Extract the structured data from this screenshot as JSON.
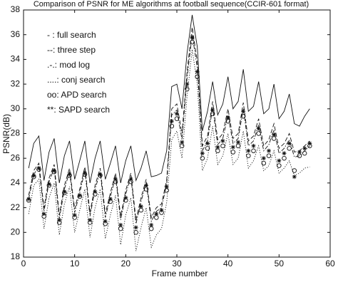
{
  "chart_data": {
    "type": "line",
    "title": "Comparison of PSNR for ME algorithms at football sequence(CCIR-601 format)",
    "x_label": "Frame number",
    "y_label": "PSNR(dB)",
    "x": [
      1,
      2,
      3,
      4,
      5,
      6,
      7,
      8,
      9,
      10,
      11,
      12,
      13,
      14,
      15,
      16,
      17,
      18,
      19,
      20,
      21,
      22,
      23,
      24,
      25,
      26,
      27,
      28,
      29,
      30,
      31,
      32,
      33,
      34,
      35,
      36,
      37,
      38,
      39,
      40,
      41,
      42,
      43,
      44,
      45,
      46,
      47,
      48,
      49,
      50,
      51,
      52,
      53,
      54,
      55,
      56
    ],
    "series": [
      {
        "name": "- : full search",
        "color": "#111",
        "dash": "solid",
        "marker": "none",
        "values": [
          25.2,
          27.2,
          27.8,
          24.2,
          26.5,
          27.6,
          24.0,
          26.2,
          27.4,
          24.3,
          25.8,
          27.4,
          24.0,
          26.0,
          27.4,
          24.3,
          25.6,
          27.0,
          24.0,
          25.8,
          27.0,
          24.2,
          25.2,
          26.6,
          24.5,
          24.6,
          24.8,
          26.6,
          31.8,
          32.0,
          30.0,
          34.5,
          37.6,
          35.0,
          28.2,
          29.8,
          32.2,
          29.5,
          30.4,
          32.6,
          30.0,
          30.6,
          33.2,
          29.8,
          30.2,
          32.2,
          29.6,
          30.0,
          32.0,
          29.2,
          29.8,
          31.2,
          28.8,
          28.6,
          29.4,
          30.0
        ]
      },
      {
        "name": "--: three step",
        "color": "#111",
        "dash": "dash",
        "marker": "none",
        "values": [
          23.0,
          25.0,
          25.6,
          22.0,
          24.4,
          25.5,
          21.4,
          23.8,
          25.2,
          21.9,
          23.5,
          25.3,
          21.6,
          23.8,
          25.2,
          21.5,
          23.2,
          24.8,
          21.3,
          23.4,
          24.8,
          21.0,
          22.8,
          24.3,
          21.2,
          22.0,
          22.3,
          24.2,
          30.0,
          30.4,
          28.0,
          33.0,
          36.6,
          33.8,
          27.0,
          27.8,
          30.6,
          27.5,
          28.0,
          30.0,
          27.6,
          28.0,
          30.5,
          27.4,
          27.8,
          29.2,
          27.0,
          27.5,
          28.8,
          26.8,
          27.2,
          28.0,
          26.5,
          26.6,
          27.0,
          27.4
        ]
      },
      {
        "name": ".-.: mod log",
        "color": "#111",
        "dash": "dashdot",
        "marker": "none",
        "values": [
          22.7,
          24.7,
          25.3,
          21.7,
          24.1,
          25.2,
          21.1,
          23.5,
          24.9,
          21.6,
          23.2,
          25.0,
          21.3,
          23.5,
          24.9,
          21.2,
          22.9,
          24.5,
          21.0,
          23.1,
          24.5,
          20.7,
          22.5,
          24.0,
          20.9,
          21.7,
          22.0,
          23.9,
          29.5,
          29.9,
          27.5,
          32.5,
          36.0,
          33.3,
          26.6,
          27.4,
          30.1,
          27.1,
          27.6,
          29.5,
          27.2,
          27.6,
          30.0,
          27.0,
          27.4,
          28.7,
          26.6,
          27.1,
          28.3,
          26.4,
          26.8,
          27.5,
          26.1,
          26.2,
          26.6,
          27.0
        ]
      },
      {
        "name": "....: conj search",
        "color": "#111",
        "dash": "dot",
        "marker": "none",
        "values": [
          21.5,
          23.8,
          24.3,
          20.3,
          22.8,
          24.0,
          19.8,
          22.3,
          23.7,
          20.0,
          21.8,
          23.5,
          19.6,
          22.0,
          23.5,
          19.5,
          21.4,
          23.0,
          19.0,
          21.4,
          22.8,
          18.5,
          20.4,
          22.0,
          18.8,
          19.8,
          20.3,
          22.4,
          27.5,
          28.2,
          26.0,
          31.0,
          34.8,
          32.0,
          25.0,
          26.0,
          28.6,
          25.5,
          26.2,
          28.0,
          25.5,
          26.0,
          28.2,
          25.2,
          25.8,
          27.0,
          25.0,
          25.4,
          26.6,
          24.8,
          25.2,
          25.8,
          24.6,
          24.8,
          25.2,
          25.3
        ]
      },
      {
        "name": "oo: APD search",
        "color": "#111",
        "dash": "none",
        "marker": "o",
        "values": [
          22.6,
          24.5,
          25.1,
          21.3,
          23.8,
          24.9,
          20.8,
          23.2,
          24.6,
          21.2,
          22.9,
          24.7,
          20.8,
          23.1,
          24.6,
          20.7,
          22.5,
          24.1,
          20.3,
          22.6,
          24.1,
          20.0,
          21.8,
          23.5,
          20.3,
          21.2,
          21.6,
          23.4,
          28.6,
          29.2,
          27.0,
          31.6,
          35.4,
          32.6,
          26.0,
          26.8,
          29.6,
          26.6,
          27.0,
          29.0,
          26.5,
          27.0,
          29.4,
          26.2,
          26.6,
          28.0,
          25.6,
          26.2,
          27.6,
          25.4,
          26.0,
          26.8,
          25.0,
          26.2,
          26.4,
          27.0
        ]
      },
      {
        "name": "**: SAPD search",
        "color": "#111",
        "dash": "none",
        "marker": "*",
        "values": [
          22.7,
          24.6,
          25.2,
          21.5,
          23.9,
          25.0,
          21.0,
          23.3,
          24.7,
          21.4,
          23.0,
          24.8,
          21.0,
          23.3,
          24.7,
          20.9,
          22.7,
          24.3,
          20.6,
          22.8,
          24.3,
          20.4,
          22.1,
          23.8,
          20.6,
          21.5,
          21.8,
          23.7,
          29.0,
          29.6,
          27.3,
          32.0,
          35.8,
          33.0,
          26.4,
          27.2,
          29.9,
          26.9,
          27.4,
          29.3,
          26.9,
          27.3,
          29.8,
          26.6,
          27.0,
          28.4,
          26.0,
          26.6,
          27.9,
          25.8,
          26.4,
          27.2,
          24.5,
          26.5,
          26.8,
          27.2
        ]
      }
    ],
    "xlim": [
      0,
      60
    ],
    "xticks": [
      0,
      10,
      20,
      30,
      40,
      50,
      60
    ],
    "ylim": [
      18,
      38
    ],
    "yticks": [
      18,
      20,
      22,
      24,
      26,
      28,
      30,
      32,
      34,
      36,
      38
    ],
    "grid": false
  }
}
